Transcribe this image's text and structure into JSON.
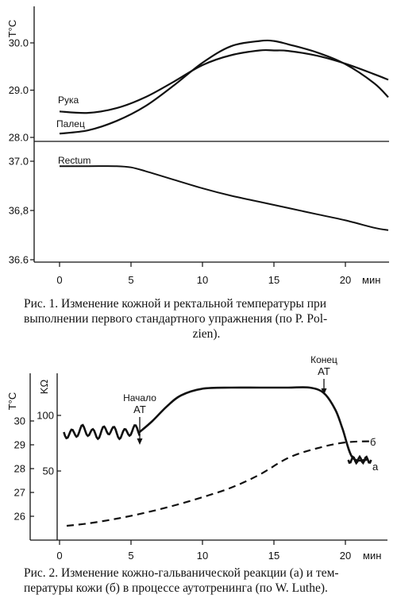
{
  "figure1": {
    "caption": "Рис. 1. Изменение кожной и ректальной температуры при выполнении первого стандартного упражнения (по P. Polzien).",
    "caption_line1": "Рис. 1. Изменение кожной и ректальной температуры при",
    "caption_line2": "выполнении первого стандартного упражнения (по P. Pol-",
    "caption_line3": "zien).",
    "chart_data": {
      "type": "line",
      "y_unit": "T°C",
      "xunit": "мин",
      "x_ticks": [
        0,
        5,
        10,
        15,
        20
      ],
      "xlim": [
        0,
        23
      ],
      "top_panel": {
        "ylim": [
          28.0,
          30.5
        ],
        "y_ticks": [
          "28.0",
          "29.0",
          "30.0"
        ],
        "series": [
          {
            "name": "Рука",
            "x": [
              0,
              2,
              4,
              6,
              8,
              10,
              12,
              14,
              15,
              16,
              18,
              20,
              22,
              23
            ],
            "y": [
              28.55,
              28.52,
              28.62,
              28.85,
              29.18,
              29.53,
              29.74,
              29.84,
              29.84,
              29.83,
              29.73,
              29.56,
              29.34,
              29.22
            ]
          },
          {
            "name": "Палец",
            "x": [
              0,
              2,
              4,
              6,
              8,
              10,
              12,
              14,
              15,
              16,
              18,
              20,
              22,
              23
            ],
            "y": [
              28.08,
              28.15,
              28.35,
              28.66,
              29.1,
              29.58,
              29.93,
              30.04,
              30.04,
              29.97,
              29.8,
              29.55,
              29.15,
              28.85
            ]
          }
        ]
      },
      "bottom_panel": {
        "ylim": [
          36.6,
          37.0
        ],
        "y_ticks": [
          "36.6",
          "36,8",
          "37.0"
        ],
        "series": [
          {
            "name": "Rectum",
            "x": [
              0,
              2,
              4,
              5,
              6,
              8,
              10,
              12,
              14,
              16,
              18,
              20,
              22,
              23
            ],
            "y": [
              36.98,
              36.98,
              36.98,
              36.975,
              36.96,
              36.925,
              36.89,
              36.86,
              36.835,
              36.81,
              36.785,
              36.76,
              36.73,
              36.72
            ]
          }
        ]
      }
    }
  },
  "figure2": {
    "caption_line1": "Рис. 2. Изменение кожно-гальванической реакции (а) и тем-",
    "caption_line2": "пературы кожи (б) в процессе аутотренинга (по W. Luthe).",
    "chart_data": {
      "type": "line",
      "y_unit_left": "T°C",
      "y_unit_right": "KΩ",
      "xunit": "мин",
      "x_ticks": [
        0,
        5,
        10,
        15,
        20
      ],
      "xlim": [
        0,
        22.5
      ],
      "temperature_ticks": [
        "26",
        "27",
        "28",
        "29",
        "30"
      ],
      "resistance_ticks": [
        "50",
        "100"
      ],
      "annotations": [
        {
          "line1": "Начало",
          "line2": "AT",
          "x": 5.5
        },
        {
          "line1": "Конец",
          "line2": "AT",
          "x": 18.5
        }
      ],
      "series": [
        {
          "name": "а",
          "axis": "resistance_kohm",
          "x": [
            5.6,
            6.5,
            7.5,
            8.5,
            10,
            12,
            14,
            16,
            17.5,
            18.5,
            19.3,
            19.8,
            20.5,
            21.5
          ],
          "y": [
            85,
            95,
            108,
            118,
            124,
            125,
            125,
            125,
            125,
            120,
            105,
            88,
            62,
            60
          ]
        },
        {
          "name": "б",
          "axis": "temperature_c",
          "x": [
            0.5,
            2,
            4,
            6,
            8,
            10,
            12,
            14,
            16,
            18,
            20,
            22
          ],
          "y": [
            25.6,
            25.7,
            25.9,
            26.15,
            26.45,
            26.8,
            27.2,
            27.75,
            28.45,
            28.85,
            29.1,
            29.15
          ]
        }
      ]
    }
  },
  "labels": {
    "ruka": "Рука",
    "palets": "Палец",
    "rectum": "Rectum",
    "a": "а",
    "b": "б",
    "start_1": "Начало",
    "start_2": "AT",
    "end_1": "Конец",
    "end_2": "AT"
  }
}
